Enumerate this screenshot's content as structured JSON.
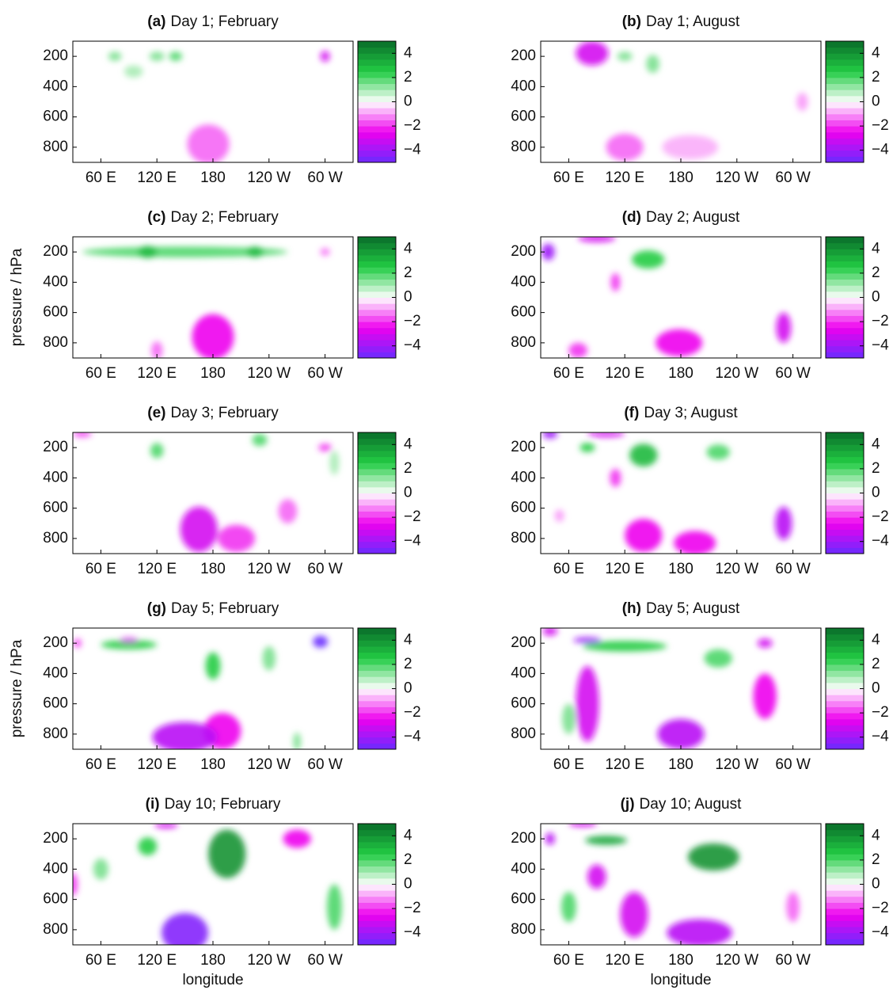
{
  "chart_data": [
    {
      "type": "contour",
      "label": "(a)",
      "title": "Day 1; February",
      "xlim": [
        30,
        330
      ],
      "xticks": [
        {
          "value": 60,
          "label": "60 E"
        },
        {
          "value": 120,
          "label": "120 E"
        },
        180,
        {
          "value": 240,
          "label": "120 W"
        },
        {
          "value": 300,
          "label": "60 W"
        }
      ],
      "ylim": [
        900,
        100
      ],
      "yticks": [
        200,
        400,
        600,
        800
      ],
      "clim": [
        -5,
        5
      ],
      "cticks": [
        4,
        2,
        0,
        {
          "value": -2,
          "label": "−2"
        },
        {
          "value": -4,
          "label": "−4"
        }
      ],
      "cmap": [
        "#6a2bff",
        "#ee00ee",
        "#ffffff",
        "#22cc44",
        "#0a6e2a"
      ],
      "features": [
        {
          "lon": 175,
          "p": 780,
          "dlon": 45,
          "dp": 260,
          "value": -1.5
        },
        {
          "lon": 95,
          "p": 300,
          "dlon": 20,
          "dp": 80,
          "value": 1
        },
        {
          "lon": 75,
          "p": 200,
          "dlon": 14,
          "dp": 60,
          "value": 1.5
        },
        {
          "lon": 120,
          "p": 200,
          "dlon": 16,
          "dp": 60,
          "value": 1.5
        },
        {
          "lon": 140,
          "p": 200,
          "dlon": 14,
          "dp": 60,
          "value": 2
        },
        {
          "lon": 300,
          "p": 200,
          "dlon": 10,
          "dp": 70,
          "value": -3
        }
      ]
    },
    {
      "type": "contour",
      "label": "(b)",
      "title": "Day 1; August",
      "xlim": [
        30,
        330
      ],
      "xticks": [
        {
          "value": 60,
          "label": "60 E"
        },
        {
          "value": 120,
          "label": "120 E"
        },
        180,
        {
          "value": 240,
          "label": "120 W"
        },
        {
          "value": 300,
          "label": "60 W"
        }
      ],
      "ylim": [
        900,
        100
      ],
      "yticks": [
        200,
        400,
        600,
        800
      ],
      "clim": [
        -5,
        5
      ],
      "cticks": [
        4,
        2,
        0,
        {
          "value": -2,
          "label": "−2"
        },
        {
          "value": -4,
          "label": "−4"
        }
      ],
      "cmap": [
        "#6a2bff",
        "#ee00ee",
        "#ffffff",
        "#22cc44",
        "#0a6e2a"
      ],
      "features": [
        {
          "lon": 190,
          "p": 800,
          "dlon": 60,
          "dp": 160,
          "value": -0.8
        },
        {
          "lon": 120,
          "p": 800,
          "dlon": 40,
          "dp": 180,
          "value": -1.5
        },
        {
          "lon": 310,
          "p": 500,
          "dlon": 12,
          "dp": 120,
          "value": -1
        },
        {
          "lon": 85,
          "p": 180,
          "dlon": 35,
          "dp": 160,
          "value": -3
        },
        {
          "lon": 120,
          "p": 200,
          "dlon": 16,
          "dp": 60,
          "value": 1.5
        },
        {
          "lon": 150,
          "p": 250,
          "dlon": 14,
          "dp": 120,
          "value": 1.5
        }
      ]
    },
    {
      "type": "contour",
      "label": "(c)",
      "title": "Day 2; February",
      "ylabel": "pressure / hPa",
      "xlim": [
        30,
        330
      ],
      "xticks": [
        {
          "value": 60,
          "label": "60 E"
        },
        {
          "value": 120,
          "label": "120 E"
        },
        180,
        {
          "value": 240,
          "label": "120 W"
        },
        {
          "value": 300,
          "label": "60 W"
        }
      ],
      "ylim": [
        900,
        100
      ],
      "yticks": [
        200,
        400,
        600,
        800
      ],
      "clim": [
        -5,
        5
      ],
      "cticks": [
        4,
        2,
        0,
        {
          "value": -2,
          "label": "−2"
        },
        {
          "value": -4,
          "label": "−4"
        }
      ],
      "cmap": [
        "#6a2bff",
        "#ee00ee",
        "#ffffff",
        "#22cc44",
        "#0a6e2a"
      ],
      "features": [
        {
          "lon": 150,
          "p": 200,
          "dlon": 220,
          "dp": 70,
          "value": 2
        },
        {
          "lon": 110,
          "p": 200,
          "dlon": 20,
          "dp": 80,
          "value": 3
        },
        {
          "lon": 225,
          "p": 200,
          "dlon": 18,
          "dp": 70,
          "value": 3
        },
        {
          "lon": 120,
          "p": 850,
          "dlon": 12,
          "dp": 120,
          "value": -1.5
        },
        {
          "lon": 180,
          "p": 760,
          "dlon": 45,
          "dp": 300,
          "value": -2.5
        },
        {
          "lon": 300,
          "p": 200,
          "dlon": 10,
          "dp": 50,
          "value": -1.5
        }
      ]
    },
    {
      "type": "contour",
      "label": "(d)",
      "title": "Day 2; August",
      "xlim": [
        30,
        330
      ],
      "xticks": [
        {
          "value": 60,
          "label": "60 E"
        },
        {
          "value": 120,
          "label": "120 E"
        },
        180,
        {
          "value": 240,
          "label": "120 W"
        },
        {
          "value": 300,
          "label": "60 W"
        }
      ],
      "ylim": [
        900,
        100
      ],
      "yticks": [
        200,
        400,
        600,
        800
      ],
      "clim": [
        -5,
        5
      ],
      "cticks": [
        4,
        2,
        0,
        {
          "value": -2,
          "label": "−2"
        },
        {
          "value": -4,
          "label": "−4"
        }
      ],
      "cmap": [
        "#6a2bff",
        "#ee00ee",
        "#ffffff",
        "#22cc44",
        "#0a6e2a"
      ],
      "features": [
        {
          "lon": 70,
          "p": 850,
          "dlon": 20,
          "dp": 100,
          "value": -2
        },
        {
          "lon": 178,
          "p": 800,
          "dlon": 50,
          "dp": 180,
          "value": -2.5
        },
        {
          "lon": 110,
          "p": 400,
          "dlon": 10,
          "dp": 120,
          "value": -2
        },
        {
          "lon": 290,
          "p": 700,
          "dlon": 16,
          "dp": 200,
          "value": -3
        },
        {
          "lon": 145,
          "p": 250,
          "dlon": 35,
          "dp": 120,
          "value": 2.5
        },
        {
          "lon": 90,
          "p": 110,
          "dlon": 40,
          "dp": 50,
          "value": -3
        },
        {
          "lon": 38,
          "p": 200,
          "dlon": 14,
          "dp": 110,
          "value": -4
        }
      ]
    },
    {
      "type": "contour",
      "label": "(e)",
      "title": "Day 3; February",
      "xlim": [
        30,
        330
      ],
      "xticks": [
        {
          "value": 60,
          "label": "60 E"
        },
        {
          "value": 120,
          "label": "120 E"
        },
        180,
        {
          "value": 240,
          "label": "120 W"
        },
        {
          "value": 300,
          "label": "60 W"
        }
      ],
      "ylim": [
        900,
        100
      ],
      "yticks": [
        200,
        400,
        600,
        800
      ],
      "clim": [
        -5,
        5
      ],
      "cticks": [
        4,
        2,
        0,
        {
          "value": -2,
          "label": "−2"
        },
        {
          "value": -4,
          "label": "−4"
        }
      ],
      "cmap": [
        "#6a2bff",
        "#ee00ee",
        "#ffffff",
        "#22cc44",
        "#0a6e2a"
      ],
      "features": [
        {
          "lon": 260,
          "p": 620,
          "dlon": 20,
          "dp": 160,
          "value": -1.5
        },
        {
          "lon": 205,
          "p": 800,
          "dlon": 40,
          "dp": 180,
          "value": -2
        },
        {
          "lon": 165,
          "p": 740,
          "dlon": 40,
          "dp": 300,
          "value": -3
        },
        {
          "lon": 310,
          "p": 300,
          "dlon": 10,
          "dp": 160,
          "value": 1
        },
        {
          "lon": 120,
          "p": 220,
          "dlon": 14,
          "dp": 100,
          "value": 2
        },
        {
          "lon": 230,
          "p": 150,
          "dlon": 16,
          "dp": 80,
          "value": 2
        },
        {
          "lon": 40,
          "p": 110,
          "dlon": 20,
          "dp": 40,
          "value": -2
        },
        {
          "lon": 300,
          "p": 200,
          "dlon": 14,
          "dp": 50,
          "value": -2
        }
      ]
    },
    {
      "type": "contour",
      "label": "(f)",
      "title": "Day 3; August",
      "xlim": [
        30,
        330
      ],
      "xticks": [
        {
          "value": 60,
          "label": "60 E"
        },
        {
          "value": 120,
          "label": "120 E"
        },
        180,
        {
          "value": 240,
          "label": "120 W"
        },
        {
          "value": 300,
          "label": "60 W"
        }
      ],
      "ylim": [
        900,
        100
      ],
      "yticks": [
        200,
        400,
        600,
        800
      ],
      "clim": [
        -5,
        5
      ],
      "cticks": [
        4,
        2,
        0,
        {
          "value": -2,
          "label": "−2"
        },
        {
          "value": -4,
          "label": "−4"
        }
      ],
      "cmap": [
        "#6a2bff",
        "#ee00ee",
        "#ffffff",
        "#22cc44",
        "#0a6e2a"
      ],
      "features": [
        {
          "lon": 50,
          "p": 650,
          "dlon": 10,
          "dp": 80,
          "value": -1
        },
        {
          "lon": 140,
          "p": 780,
          "dlon": 40,
          "dp": 220,
          "value": -2.5
        },
        {
          "lon": 195,
          "p": 830,
          "dlon": 45,
          "dp": 160,
          "value": -2.5
        },
        {
          "lon": 110,
          "p": 400,
          "dlon": 12,
          "dp": 120,
          "value": -2
        },
        {
          "lon": 290,
          "p": 700,
          "dlon": 18,
          "dp": 220,
          "value": -3.5
        },
        {
          "lon": 80,
          "p": 200,
          "dlon": 16,
          "dp": 60,
          "value": 2.5
        },
        {
          "lon": 140,
          "p": 250,
          "dlon": 30,
          "dp": 150,
          "value": 3
        },
        {
          "lon": 220,
          "p": 230,
          "dlon": 25,
          "dp": 100,
          "value": 2
        },
        {
          "lon": 100,
          "p": 110,
          "dlon": 40,
          "dp": 40,
          "value": -3
        },
        {
          "lon": 40,
          "p": 110,
          "dlon": 16,
          "dp": 60,
          "value": -4
        }
      ]
    },
    {
      "type": "contour",
      "label": "(g)",
      "title": "Day 5; February",
      "ylabel": "pressure / hPa",
      "xlim": [
        30,
        330
      ],
      "xticks": [
        {
          "value": 60,
          "label": "60 E"
        },
        {
          "value": 120,
          "label": "120 E"
        },
        180,
        {
          "value": 240,
          "label": "120 W"
        },
        {
          "value": 300,
          "label": "60 W"
        }
      ],
      "ylim": [
        900,
        100
      ],
      "yticks": [
        200,
        400,
        600,
        800
      ],
      "clim": [
        -5,
        5
      ],
      "cticks": [
        4,
        2,
        0,
        {
          "value": -2,
          "label": "−2"
        },
        {
          "value": -4,
          "label": "−4"
        }
      ],
      "cmap": [
        "#6a2bff",
        "#ee00ee",
        "#ffffff",
        "#22cc44",
        "#0a6e2a"
      ],
      "features": [
        {
          "lon": 190,
          "p": 780,
          "dlon": 40,
          "dp": 240,
          "value": -2.5
        },
        {
          "lon": 150,
          "p": 820,
          "dlon": 70,
          "dp": 200,
          "value": -3.5
        },
        {
          "lon": 270,
          "p": 850,
          "dlon": 8,
          "dp": 120,
          "value": 1.5
        },
        {
          "lon": 240,
          "p": 300,
          "dlon": 14,
          "dp": 160,
          "value": 1.5
        },
        {
          "lon": 90,
          "p": 210,
          "dlon": 60,
          "dp": 60,
          "value": 2.5
        },
        {
          "lon": 180,
          "p": 350,
          "dlon": 16,
          "dp": 180,
          "value": 2.5
        },
        {
          "lon": 90,
          "p": 180,
          "dlon": 20,
          "dp": 30,
          "value": -3
        },
        {
          "lon": 35,
          "p": 200,
          "dlon": 8,
          "dp": 60,
          "value": -2
        },
        {
          "lon": 295,
          "p": 190,
          "dlon": 16,
          "dp": 80,
          "value": -5
        }
      ]
    },
    {
      "type": "contour",
      "label": "(h)",
      "title": "Day 5; August",
      "xlim": [
        30,
        330
      ],
      "xticks": [
        {
          "value": 60,
          "label": "60 E"
        },
        {
          "value": 120,
          "label": "120 E"
        },
        180,
        {
          "value": 240,
          "label": "120 W"
        },
        {
          "value": 300,
          "label": "60 W"
        }
      ],
      "ylim": [
        900,
        100
      ],
      "yticks": [
        200,
        400,
        600,
        800
      ],
      "clim": [
        -5,
        5
      ],
      "cticks": [
        4,
        2,
        0,
        {
          "value": -2,
          "label": "−2"
        },
        {
          "value": -4,
          "label": "−4"
        }
      ],
      "cmap": [
        "#6a2bff",
        "#ee00ee",
        "#ffffff",
        "#22cc44",
        "#0a6e2a"
      ],
      "features": [
        {
          "lon": 60,
          "p": 700,
          "dlon": 14,
          "dp": 200,
          "value": 1.5
        },
        {
          "lon": 120,
          "p": 220,
          "dlon": 90,
          "dp": 70,
          "value": 2.5
        },
        {
          "lon": 220,
          "p": 300,
          "dlon": 30,
          "dp": 120,
          "value": 2
        },
        {
          "lon": 270,
          "p": 550,
          "dlon": 25,
          "dp": 300,
          "value": -2.5
        },
        {
          "lon": 80,
          "p": 600,
          "dlon": 25,
          "dp": 500,
          "value": -3
        },
        {
          "lon": 180,
          "p": 800,
          "dlon": 50,
          "dp": 200,
          "value": -3.5
        },
        {
          "lon": 270,
          "p": 200,
          "dlon": 16,
          "dp": 60,
          "value": -3
        },
        {
          "lon": 40,
          "p": 120,
          "dlon": 16,
          "dp": 60,
          "value": -3
        },
        {
          "lon": 80,
          "p": 180,
          "dlon": 30,
          "dp": 40,
          "value": -4
        }
      ]
    },
    {
      "type": "contour",
      "label": "(i)",
      "title": "Day 10; February",
      "xlabel": "longitude",
      "xlim": [
        30,
        330
      ],
      "xticks": [
        {
          "value": 60,
          "label": "60 E"
        },
        {
          "value": 120,
          "label": "120 E"
        },
        180,
        {
          "value": 240,
          "label": "120 W"
        },
        {
          "value": 300,
          "label": "60 W"
        }
      ],
      "ylim": [
        900,
        100
      ],
      "yticks": [
        200,
        400,
        600,
        800
      ],
      "clim": [
        -5,
        5
      ],
      "cticks": [
        4,
        2,
        0,
        {
          "value": -2,
          "label": "−2"
        },
        {
          "value": -4,
          "label": "−4"
        }
      ],
      "cmap": [
        "#6a2bff",
        "#ee00ee",
        "#ffffff",
        "#22cc44",
        "#0a6e2a"
      ],
      "features": [
        {
          "lon": 60,
          "p": 400,
          "dlon": 16,
          "dp": 140,
          "value": 1.5
        },
        {
          "lon": 310,
          "p": 650,
          "dlon": 16,
          "dp": 300,
          "value": 2
        },
        {
          "lon": 110,
          "p": 250,
          "dlon": 20,
          "dp": 120,
          "value": 2.5
        },
        {
          "lon": 195,
          "p": 300,
          "dlon": 40,
          "dp": 320,
          "value": 4
        },
        {
          "lon": 270,
          "p": 200,
          "dlon": 30,
          "dp": 120,
          "value": -2.5
        },
        {
          "lon": 30,
          "p": 500,
          "dlon": 10,
          "dp": 150,
          "value": -2
        },
        {
          "lon": 130,
          "p": 110,
          "dlon": 25,
          "dp": 40,
          "value": -3
        },
        {
          "lon": 150,
          "p": 820,
          "dlon": 50,
          "dp": 260,
          "value": -4.5
        }
      ]
    },
    {
      "type": "contour",
      "label": "(j)",
      "title": "Day 10; August",
      "xlabel": "longitude",
      "xlim": [
        30,
        330
      ],
      "xticks": [
        {
          "value": 60,
          "label": "60 E"
        },
        {
          "value": 120,
          "label": "120 E"
        },
        180,
        {
          "value": 240,
          "label": "120 W"
        },
        {
          "value": 300,
          "label": "60 W"
        }
      ],
      "ylim": [
        900,
        100
      ],
      "yticks": [
        200,
        400,
        600,
        800
      ],
      "clim": [
        -5,
        5
      ],
      "cticks": [
        4,
        2,
        0,
        {
          "value": -2,
          "label": "−2"
        },
        {
          "value": -4,
          "label": "−4"
        }
      ],
      "cmap": [
        "#6a2bff",
        "#ee00ee",
        "#ffffff",
        "#22cc44",
        "#0a6e2a"
      ],
      "features": [
        {
          "lon": 300,
          "p": 650,
          "dlon": 14,
          "dp": 200,
          "value": -1.5
        },
        {
          "lon": 60,
          "p": 650,
          "dlon": 16,
          "dp": 200,
          "value": 2
        },
        {
          "lon": 130,
          "p": 700,
          "dlon": 30,
          "dp": 300,
          "value": -3
        },
        {
          "lon": 200,
          "p": 820,
          "dlon": 70,
          "dp": 180,
          "value": -3.5
        },
        {
          "lon": 90,
          "p": 450,
          "dlon": 20,
          "dp": 160,
          "value": -3
        },
        {
          "lon": 100,
          "p": 210,
          "dlon": 45,
          "dp": 60,
          "value": 3.5
        },
        {
          "lon": 215,
          "p": 320,
          "dlon": 55,
          "dp": 180,
          "value": 4
        },
        {
          "lon": 75,
          "p": 100,
          "dlon": 30,
          "dp": 40,
          "value": -3
        },
        {
          "lon": 40,
          "p": 200,
          "dlon": 10,
          "dp": 80,
          "value": -3.5
        }
      ]
    }
  ]
}
